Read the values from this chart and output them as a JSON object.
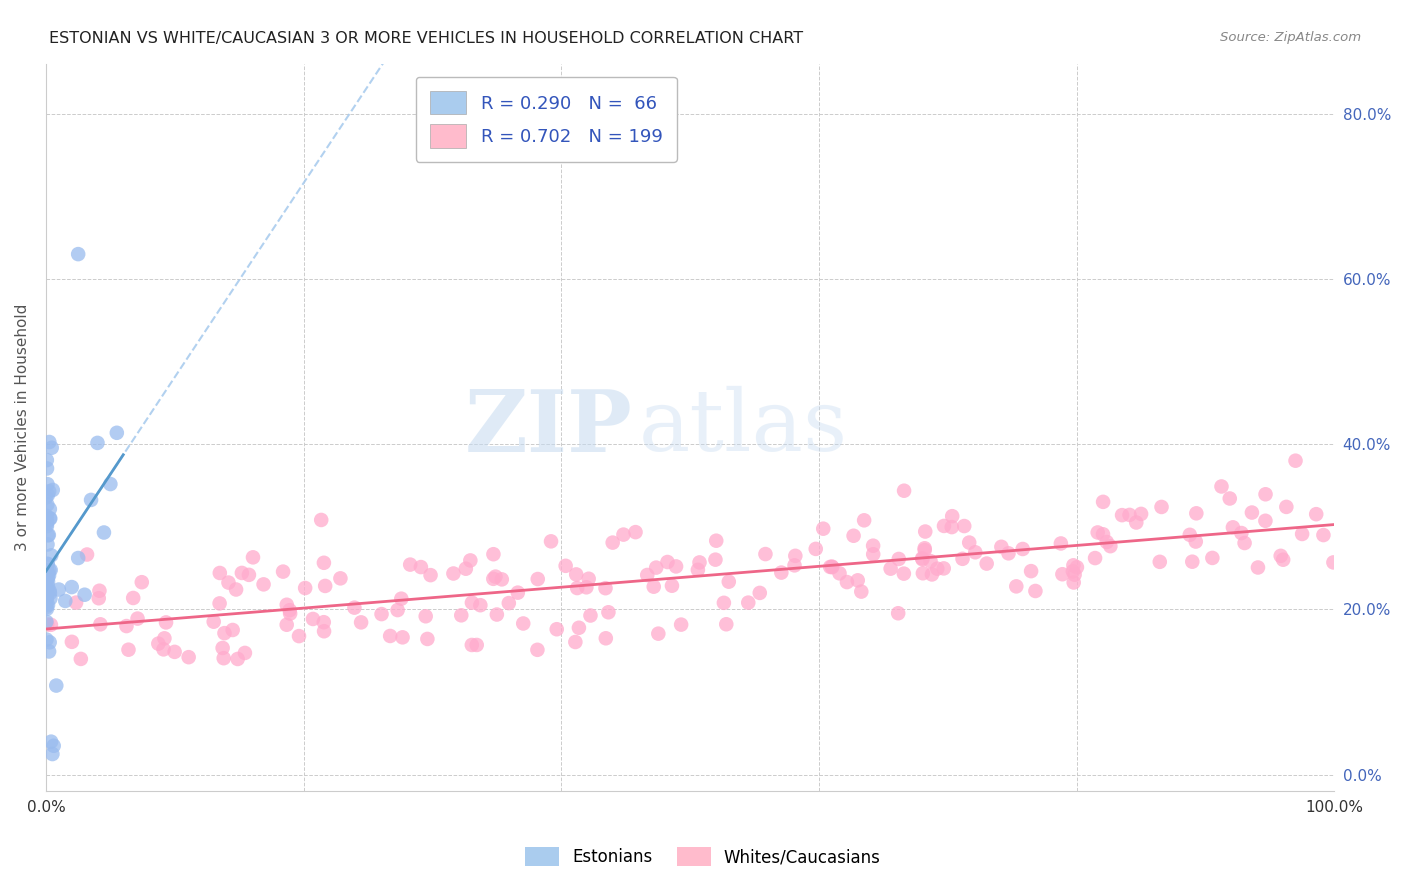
{
  "title": "ESTONIAN VS WHITE/CAUCASIAN 3 OR MORE VEHICLES IN HOUSEHOLD CORRELATION CHART",
  "source": "Source: ZipAtlas.com",
  "ylabel": "3 or more Vehicles in Household",
  "xlim": [
    0,
    1.0
  ],
  "ylim": [
    -0.02,
    0.86
  ],
  "ytick_labels": [
    "0.0%",
    "20.0%",
    "40.0%",
    "60.0%",
    "80.0%"
  ],
  "ytick_values": [
    0.0,
    0.2,
    0.4,
    0.6,
    0.8
  ],
  "xtick_values": [
    0.0,
    0.2,
    0.4,
    0.6,
    0.8,
    1.0
  ],
  "blue_color": "#5599cc",
  "blue_scatter_color": "#99bbee",
  "pink_color": "#ee6688",
  "pink_scatter_color": "#ffaacc",
  "blue_R": 0.29,
  "blue_N": 66,
  "pink_R": 0.702,
  "pink_N": 199,
  "watermark_zip": "ZIP",
  "watermark_atlas": "atlas",
  "background_color": "#ffffff",
  "grid_color": "#cccccc",
  "title_color": "#222222",
  "source_color": "#888888",
  "right_tick_color": "#4466bb"
}
